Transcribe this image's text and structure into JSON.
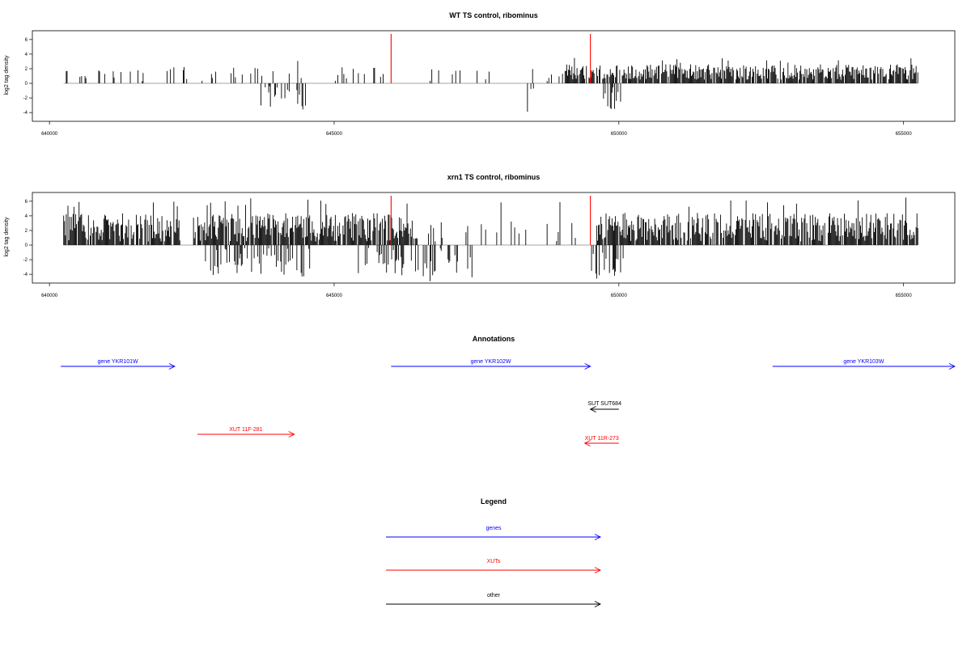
{
  "chart_data": [
    {
      "type": "bar",
      "title": "WT TS control, ribominus",
      "ylabel": "log2 tag density",
      "xlim": [
        639700,
        655900
      ],
      "ylim": [
        -5.2,
        7.2
      ],
      "xticks": [
        640000,
        645000,
        650000,
        655000
      ],
      "yticks": [
        -4,
        -2,
        0,
        2,
        4,
        6
      ],
      "data_range": [
        640250,
        655250
      ],
      "markers": [
        646000,
        649500
      ],
      "marker_color": "#ff0000",
      "seed": 11,
      "dense_regions": [
        [
          649000,
          655250
        ]
      ],
      "neg_regions": [
        [
          643700,
          644500
        ],
        [
          648300,
          648500
        ],
        [
          649700,
          650050
        ]
      ],
      "peak_pos": 3.5,
      "peak_neg": -4.0
    },
    {
      "type": "bar",
      "title": "xrn1 TS control, ribominus",
      "ylabel": "log2 tag density",
      "xlim": [
        639700,
        655900
      ],
      "ylim": [
        -5.2,
        7.2
      ],
      "xticks": [
        640000,
        645000,
        650000,
        655000
      ],
      "yticks": [
        -4,
        -2,
        0,
        2,
        4,
        6
      ],
      "data_range": [
        640250,
        655250
      ],
      "markers": [
        646000,
        649500
      ],
      "marker_color": "#ff0000",
      "seed": 29,
      "dense_regions": [
        [
          640250,
          642300
        ],
        [
          642600,
          646500
        ],
        [
          649600,
          655250
        ]
      ],
      "neg_regions": [
        [
          642700,
          644600
        ],
        [
          645400,
          647500
        ],
        [
          649500,
          650100
        ]
      ],
      "peak_pos": 6.5,
      "peak_neg": -5.0
    }
  ],
  "annotations": {
    "title": "Annotations",
    "xlim": [
      639700,
      655900
    ],
    "items": [
      {
        "label": "gene YKR101W",
        "start": 640200,
        "end": 642200,
        "dir": "forward",
        "color": "#0000ff",
        "row": 0
      },
      {
        "label": "gene YKR102W",
        "start": 646000,
        "end": 649500,
        "dir": "forward",
        "color": "#0000ff",
        "row": 0
      },
      {
        "label": "gene YKR103W",
        "start": 652700,
        "end": 655900,
        "dir": "forward",
        "color": "#0000ff",
        "row": 0
      },
      {
        "label": "SUT SUT684",
        "start": 649500,
        "end": 650000,
        "dir": "reverse",
        "color": "#000000",
        "row": 1
      },
      {
        "label": "XUT 11F-281",
        "start": 642600,
        "end": 644300,
        "dir": "forward",
        "color": "#ff0000",
        "row": 2
      },
      {
        "label": "XUT 11R-273",
        "start": 649400,
        "end": 650000,
        "dir": "reverse",
        "color": "#ff0000",
        "row": 3
      }
    ]
  },
  "legend": {
    "title": "Legend",
    "items": [
      {
        "label": "genes",
        "color": "#0000ff"
      },
      {
        "label": "XUTs",
        "color": "#ff0000"
      },
      {
        "label": "other",
        "color": "#000000"
      }
    ]
  }
}
